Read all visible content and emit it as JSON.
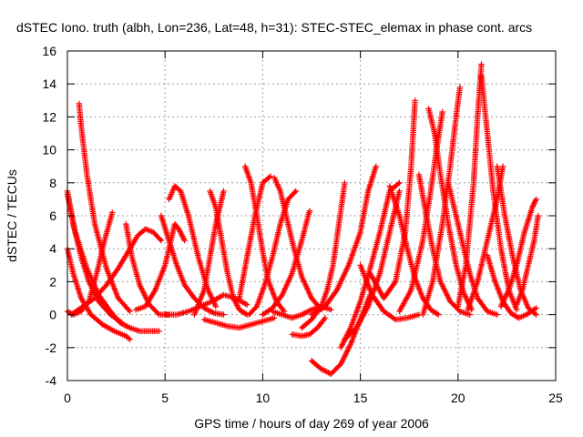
{
  "chart_data": {
    "type": "scatter",
    "title": "dSTEC Iono. truth (albh, Lon=236, Lat=48, h=31): STEC-STEC_elemax in phase cont. arcs",
    "xlabel": "GPS time / hours of day 269 of year 2006",
    "ylabel": "dSTEC  / TECUs",
    "xlim": [
      0,
      25
    ],
    "ylim": [
      -4,
      16
    ],
    "x_ticks": [
      0,
      5,
      10,
      15,
      20,
      25
    ],
    "y_ticks": [
      -4,
      -2,
      0,
      2,
      4,
      6,
      8,
      10,
      12,
      14,
      16
    ],
    "x_tick_labels": [
      "0",
      "5",
      "10",
      "15",
      "20",
      "25"
    ],
    "y_tick_labels": [
      "-4",
      "-2",
      "0",
      "2",
      "4",
      "6",
      "8",
      "10",
      "12",
      "14",
      "16"
    ],
    "grid": true,
    "marker": "plus",
    "color": "#ff0000",
    "series": [
      {
        "x": [
          0.0,
          0.3,
          0.7,
          1.2,
          1.8,
          2.4,
          3.0,
          3.2
        ],
        "y": [
          4.0,
          2.5,
          1.0,
          0.0,
          -0.6,
          -1.0,
          -1.3,
          -1.5
        ]
      },
      {
        "x": [
          0.0,
          0.4,
          1.0,
          1.6,
          2.2,
          2.7,
          3.2,
          3.7,
          4.2,
          4.7
        ],
        "y": [
          7.3,
          5.0,
          2.8,
          1.2,
          0.2,
          -0.5,
          -0.8,
          -1.0,
          -1.0,
          -1.0
        ]
      },
      {
        "x": [
          0.0,
          0.3,
          0.7,
          1.1,
          1.6,
          2.2,
          2.8
        ],
        "y": [
          7.5,
          5.5,
          3.5,
          2.0,
          0.8,
          0.0,
          -0.5
        ]
      },
      {
        "x": [
          0.0,
          0.3,
          0.7,
          1.1,
          1.5,
          1.9,
          2.3
        ],
        "y": [
          0.2,
          0.0,
          0.2,
          0.8,
          2.5,
          4.5,
          6.2
        ]
      },
      {
        "x": [
          0.6,
          0.7,
          1.0,
          1.4,
          2.0,
          2.6,
          3.2
        ],
        "y": [
          12.8,
          11.5,
          8.5,
          5.5,
          2.8,
          1.0,
          0.2
        ]
      },
      {
        "x": [
          0.2,
          0.8,
          1.4,
          2.0,
          2.6,
          3.2,
          3.6,
          4.0,
          4.4,
          4.8
        ],
        "y": [
          0.0,
          0.5,
          1.0,
          1.8,
          2.8,
          4.0,
          4.8,
          5.2,
          5.0,
          4.5
        ]
      },
      {
        "x": [
          3.0,
          3.3,
          3.7,
          4.2,
          4.7,
          5.2
        ],
        "y": [
          5.5,
          3.5,
          1.8,
          0.6,
          0.0,
          0.0
        ]
      },
      {
        "x": [
          3.5,
          4.0,
          4.5,
          5.0,
          5.3,
          5.5,
          5.7,
          6.0
        ],
        "y": [
          0.3,
          0.5,
          1.5,
          3.0,
          4.5,
          5.5,
          5.2,
          4.5
        ]
      },
      {
        "x": [
          4.8,
          5.2,
          5.6,
          6.0,
          6.5,
          7.0,
          7.5,
          8.0
        ],
        "y": [
          6.0,
          4.5,
          3.0,
          1.8,
          1.0,
          0.4,
          0.1,
          0.0
        ]
      },
      {
        "x": [
          5.2,
          5.5,
          5.8,
          6.2,
          6.7,
          7.2,
          7.6
        ],
        "y": [
          7.0,
          7.8,
          7.5,
          6.0,
          3.5,
          1.5,
          0.5
        ]
      },
      {
        "x": [
          5.0,
          5.6,
          6.2,
          6.8,
          7.4,
          8.0,
          8.6,
          9.2
        ],
        "y": [
          0.0,
          0.0,
          0.2,
          0.5,
          0.8,
          1.2,
          1.0,
          0.6
        ]
      },
      {
        "x": [
          7.3,
          7.6,
          7.9,
          8.2,
          8.5,
          8.8,
          9.2
        ],
        "y": [
          7.5,
          6.5,
          4.5,
          2.5,
          1.0,
          0.3,
          0.0
        ]
      },
      {
        "x": [
          6.5,
          7.0,
          7.3,
          7.6,
          7.8,
          8.0
        ],
        "y": [
          0.0,
          1.5,
          3.5,
          5.5,
          6.5,
          7.5
        ]
      },
      {
        "x": [
          7.0,
          7.6,
          8.2,
          8.8,
          9.4,
          10.0,
          10.6
        ],
        "y": [
          -0.3,
          -0.5,
          -0.7,
          -0.8,
          -0.6,
          -0.4,
          -0.2
        ]
      },
      {
        "x": [
          9.1,
          9.4,
          9.7,
          10.0,
          10.3,
          10.7,
          11.1
        ],
        "y": [
          9.0,
          8.0,
          6.0,
          3.8,
          2.0,
          0.8,
          0.2
        ]
      },
      {
        "x": [
          8.8,
          9.2,
          9.6,
          10.0,
          10.4
        ],
        "y": [
          1.0,
          3.5,
          6.0,
          8.0,
          8.4
        ]
      },
      {
        "x": [
          9.3,
          9.7,
          10.1,
          10.5,
          10.9,
          11.3,
          11.7
        ],
        "y": [
          0.0,
          0.5,
          1.8,
          3.5,
          5.5,
          7.0,
          7.5
        ]
      },
      {
        "x": [
          10.6,
          10.9,
          11.2,
          11.6,
          12.0,
          12.5,
          13.0
        ],
        "y": [
          8.3,
          7.5,
          6.0,
          4.0,
          2.3,
          1.0,
          0.3
        ]
      },
      {
        "x": [
          10.0,
          10.5,
          11.0,
          11.5,
          12.0,
          12.4
        ],
        "y": [
          0.0,
          0.4,
          1.2,
          2.5,
          4.5,
          6.3
        ]
      },
      {
        "x": [
          10.5,
          11.0,
          11.5,
          12.0,
          12.5,
          13.0,
          13.5
        ],
        "y": [
          0.2,
          0.0,
          -0.2,
          0.0,
          0.3,
          0.5,
          0.3
        ]
      },
      {
        "x": [
          11.5,
          12.0,
          12.4,
          12.8,
          13.2
        ],
        "y": [
          -1.2,
          -1.3,
          -1.2,
          -0.8,
          -0.2
        ]
      },
      {
        "x": [
          12.0,
          12.5,
          13.0,
          13.3,
          13.6,
          13.9,
          14.2
        ],
        "y": [
          -0.8,
          -0.3,
          0.5,
          1.5,
          3.0,
          5.5,
          8.0
        ]
      },
      {
        "x": [
          12.5,
          13.0,
          13.5,
          14.0,
          14.5,
          15.0,
          15.5
        ],
        "y": [
          -2.8,
          -3.3,
          -3.6,
          -3.0,
          -1.8,
          -0.3,
          1.2
        ]
      },
      {
        "x": [
          12.5,
          13.2,
          13.8,
          14.4,
          15.0,
          15.4,
          15.8
        ],
        "y": [
          0.0,
          0.5,
          1.5,
          3.0,
          5.0,
          7.5,
          9.0
        ]
      },
      {
        "x": [
          14.0,
          14.5,
          15.0,
          15.5,
          16.0,
          16.5,
          17.0
        ],
        "y": [
          -2.0,
          -0.8,
          0.8,
          2.8,
          5.0,
          7.5,
          8.0
        ]
      },
      {
        "x": [
          14.2,
          14.8,
          15.4,
          16.0,
          16.5,
          17.0
        ],
        "y": [
          -1.5,
          -0.8,
          0.5,
          2.5,
          5.0,
          7.5
        ]
      },
      {
        "x": [
          15.0,
          15.6,
          16.2,
          16.8,
          17.4,
          18.0
        ],
        "y": [
          3.0,
          1.2,
          0.2,
          -0.3,
          -0.2,
          0.0
        ]
      },
      {
        "x": [
          15.5,
          16.2,
          16.8,
          17.3,
          17.6,
          17.8
        ],
        "y": [
          2.5,
          1.0,
          2.0,
          5.0,
          9.0,
          13.0
        ]
      },
      {
        "x": [
          16.5,
          17.0,
          17.4,
          17.8,
          18.2,
          18.6,
          19.0
        ],
        "y": [
          7.8,
          6.0,
          4.0,
          2.2,
          1.0,
          0.3,
          0.0
        ]
      },
      {
        "x": [
          17.0,
          17.6,
          18.2,
          18.6,
          18.9,
          19.2
        ],
        "y": [
          0.2,
          1.5,
          4.5,
          7.5,
          10.0,
          12.3
        ]
      },
      {
        "x": [
          18.0,
          18.3,
          18.7,
          19.1,
          19.6,
          20.1,
          20.6
        ],
        "y": [
          8.5,
          6.5,
          4.0,
          2.0,
          0.8,
          0.2,
          0.0
        ]
      },
      {
        "x": [
          18.5,
          18.8,
          19.1,
          19.5,
          19.9,
          20.3,
          20.7
        ],
        "y": [
          12.5,
          11.0,
          8.5,
          5.5,
          3.0,
          1.3,
          0.3
        ]
      },
      {
        "x": [
          18.2,
          18.7,
          19.2,
          19.6,
          19.9,
          20.1
        ],
        "y": [
          0.0,
          2.0,
          5.5,
          9.0,
          12.0,
          13.8
        ]
      },
      {
        "x": [
          19.5,
          19.8,
          20.2,
          20.6,
          21.0,
          21.5,
          22.0
        ],
        "y": [
          8.0,
          6.5,
          4.5,
          2.5,
          1.0,
          0.2,
          0.0
        ]
      },
      {
        "x": [
          20.0,
          20.4,
          20.8,
          21.0,
          21.2
        ],
        "y": [
          0.5,
          3.0,
          8.0,
          12.0,
          15.2
        ]
      },
      {
        "x": [
          21.2,
          21.5,
          21.8,
          22.2,
          22.6,
          23.0
        ],
        "y": [
          14.5,
          11.0,
          7.5,
          4.0,
          1.5,
          0.3
        ]
      },
      {
        "x": [
          20.5,
          21.0,
          21.5,
          22.0,
          22.3
        ],
        "y": [
          0.3,
          2.0,
          4.5,
          7.0,
          9.0
        ]
      },
      {
        "x": [
          21.5,
          21.9,
          22.3,
          22.7,
          23.1,
          23.5,
          24.0
        ],
        "y": [
          3.6,
          2.0,
          0.8,
          0.1,
          -0.2,
          0.0,
          0.4
        ]
      },
      {
        "x": [
          22.0,
          22.4,
          22.8,
          23.2,
          23.6,
          24.0
        ],
        "y": [
          9.0,
          6.0,
          3.5,
          1.5,
          0.4,
          0.0
        ]
      },
      {
        "x": [
          22.2,
          22.6,
          23.0,
          23.4,
          23.8,
          24.0
        ],
        "y": [
          0.5,
          1.5,
          3.0,
          5.0,
          6.5,
          7.0
        ]
      },
      {
        "x": [
          23.0,
          23.3,
          23.6,
          23.9,
          24.1
        ],
        "y": [
          0.6,
          1.5,
          3.0,
          4.5,
          6.0
        ]
      }
    ]
  }
}
